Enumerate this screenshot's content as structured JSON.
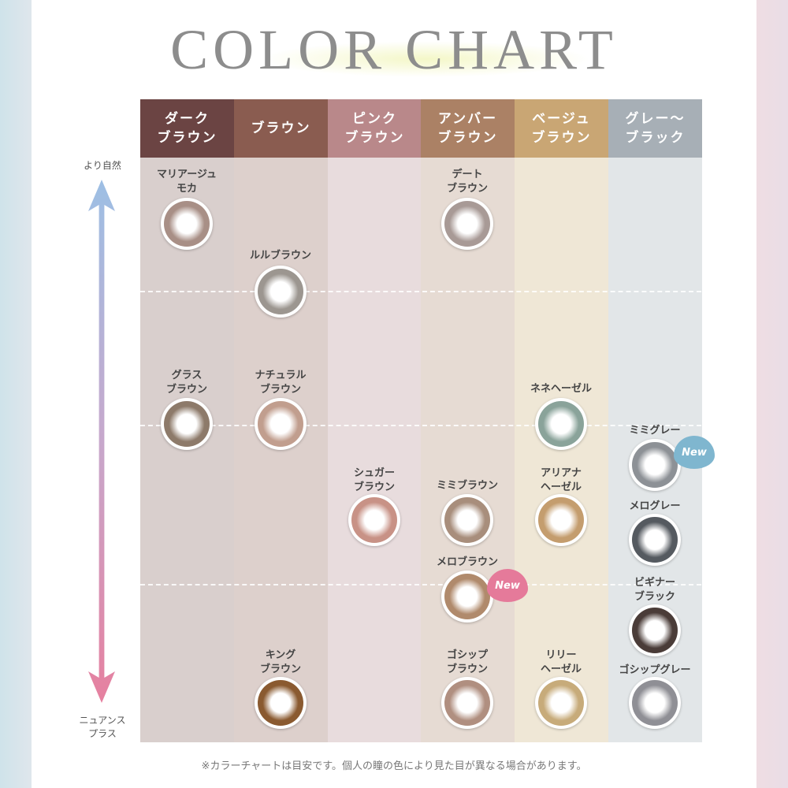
{
  "title": "COLOR CHART",
  "axis": {
    "top": "より自然",
    "bottom": "ニュアンス\nプラス"
  },
  "columns": [
    {
      "label": "ダーク\nブラウン",
      "color": "#6b4443",
      "bg": "#d9cfcd"
    },
    {
      "label": "ブラウン",
      "color": "#8a5c50",
      "bg": "#ddd0cc"
    },
    {
      "label": "ピンク\nブラウン",
      "color": "#b9888a",
      "bg": "#e8dcdd"
    },
    {
      "label": "アンバー\nブラウン",
      "color": "#ab8165",
      "bg": "#e6dbd3"
    },
    {
      "label": "ベージュ\nブラウン",
      "color": "#c9a674",
      "bg": "#efe7d6"
    },
    {
      "label": "グレー～\nブラック",
      "color": "#a7afb6",
      "bg": "#e2e6e8"
    }
  ],
  "lenses": [
    {
      "name": "マリアージュ\nモカ",
      "ring": "#a88f86"
    },
    {
      "name": "デート\nブラウン",
      "ring": "#a89a96"
    },
    {
      "name": "ルルブラウン",
      "ring": "#9c9690"
    },
    {
      "name": "グラス\nブラウン",
      "ring": "#8d7a6a"
    },
    {
      "name": "ナチュラル\nブラウン",
      "ring": "#c19e8e"
    },
    {
      "name": "ネネヘーゼル",
      "ring": "#8aa39a"
    },
    {
      "name": "ミミグレー",
      "ring": "#8d9196"
    },
    {
      "name": "シュガー\nブラウン",
      "ring": "#c89286"
    },
    {
      "name": "ミミブラウン",
      "ring": "#a88e7c"
    },
    {
      "name": "アリアナ\nヘーゼル",
      "ring": "#c49d6e"
    },
    {
      "name": "メログレー",
      "ring": "#555a60"
    },
    {
      "name": "メロブラウン",
      "ring": "#b08a6c"
    },
    {
      "name": "ビギナー\nブラック",
      "ring": "#4a3c38"
    },
    {
      "name": "キング\nブラウン",
      "ring": "#8a5a30"
    },
    {
      "name": "ゴシップ\nブラウン",
      "ring": "#b08f80"
    },
    {
      "name": "リリー\nヘーゼル",
      "ring": "#c7ab7a"
    },
    {
      "name": "ゴシップグレー",
      "ring": "#8f8f95"
    }
  ],
  "badges": {
    "new_label": "New",
    "blue": "#7fb6cf",
    "pink": "#e57a9a"
  },
  "note": "※カラーチャートは目安です。個人の瞳の色により見た目が異なる場合があります。"
}
